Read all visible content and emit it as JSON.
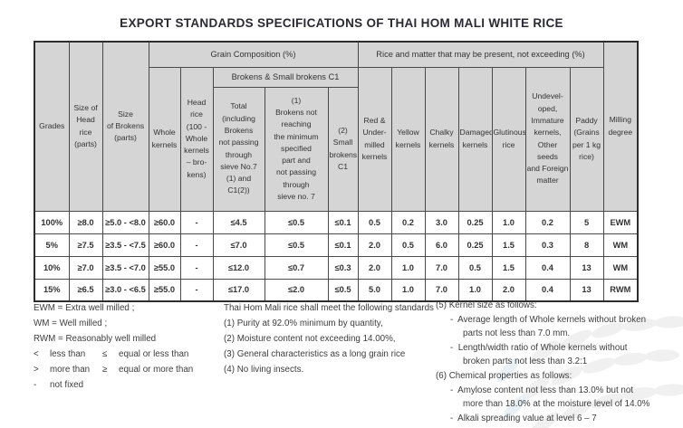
{
  "title": "EXPORT STANDARDS SPECIFICATIONS OF THAI HOM MALI WHITE RICE",
  "colors": {
    "header_bg": "#d5d5d5",
    "border": "#4a4a4a",
    "outer_border": "#2e2e2e",
    "title_text": "#2a2a33",
    "watermark": "#f0f0f0"
  },
  "table": {
    "groups": {
      "grain": "Grain Composition (%)",
      "rice_matter": "Rice and matter that may be present, not exceeding (%)",
      "brokens_small": "Brokens & Small brokens C1"
    },
    "h": {
      "grades": "Grades",
      "size_head": "Size of\nHead\nrice\n(parts)",
      "size_brokens": "Size\nof Brokens\n(parts)",
      "whole": "Whole\nkernels",
      "head_rice": "Head\nrice\n(100 -\nWhole\nkernels\n– bro-\nkens)",
      "total": "Total\n(including\nBrokens\nnot passing\nthrough\nsieve No.7\n(1) and\nC1(2))",
      "b1": "(1)\nBrokens not\nreaching\nthe minimum\nspecified\npart and\nnot passing\nthrough\nsieve no. 7",
      "b2": "(2)\nSmall\nbrokens\nC1",
      "red": "Red &\nUnder-\nmilled\nkernels",
      "yellow": "Yellow\nkernels",
      "chalky": "Chalky\nkernels",
      "damaged": "Damaged\nkernels",
      "glutinous": "Glutinous\nrice",
      "undeveloped": "Undevel-\noped,\nImmature\nkernels,\nOther\nseeds\nand Foreign\nmatter",
      "paddy": "Paddy\n(Grains\nper 1 kg\nrice)",
      "milling": "Milling\ndegree"
    },
    "rows": [
      [
        "100%",
        "≥8.0",
        "≥5.0 - <8.0",
        "≥60.0",
        "-",
        "≤4.5",
        "≤0.5",
        "≤0.1",
        "0.5",
        "0.2",
        "3.0",
        "0.25",
        "1.0",
        "0.2",
        "5",
        "EWM"
      ],
      [
        "5%",
        "≥7.5",
        "≥3.5 - <7.5",
        "≥60.0",
        "-",
        "≤7.0",
        "≤0.5",
        "≤0.1",
        "2.0",
        "0.5",
        "6.0",
        "0.25",
        "1.5",
        "0.3",
        "8",
        "WM"
      ],
      [
        "10%",
        "≥7.0",
        "≥3.5 - <7.0",
        "≥55.0",
        "-",
        "≤12.0",
        "≤0.7",
        "≤0.3",
        "2.0",
        "1.0",
        "7.0",
        "0.5",
        "1.5",
        "0.4",
        "13",
        "WM"
      ],
      [
        "15%",
        "≥6.5",
        "≥3.0 - <6.5",
        "≥55.0",
        "-",
        "≤17.0",
        "≤2.0",
        "≤0.5",
        "5.0",
        "1.0",
        "7.0",
        "1.0",
        "2.0",
        "0.4",
        "13",
        "RWM"
      ]
    ]
  },
  "notes": {
    "left": [
      {
        "segs": [
          "EWM = Extra well milled ;"
        ]
      },
      {
        "segs": [
          "WM = Well milled ;"
        ]
      },
      {
        "segs": [
          "RWM = Reasonably well milled"
        ]
      },
      {
        "segs": [
          "<",
          "less than",
          "≤",
          "equal or less than"
        ]
      },
      {
        "segs": [
          ">",
          "more than",
          "≥",
          "equal or more than"
        ]
      },
      {
        "segs": [
          "-",
          "not fixed"
        ]
      }
    ],
    "middle": [
      {
        "ind": 0,
        "text": "Thai Hom Mali rice shall meet the following standards"
      },
      {
        "ind": 0,
        "text": "(1) Purity at 92.0% minimum by quantity,"
      },
      {
        "ind": 0,
        "text": "(2) Moisture content not exceeding 14.00%,"
      },
      {
        "ind": 0,
        "text": "(3) General characteristics as a long grain rice"
      },
      {
        "ind": 0,
        "text": "(4) No living insects."
      }
    ],
    "right": [
      {
        "ind": 0,
        "text": "(5) Kernel size as follows:"
      },
      {
        "ind": 1,
        "text": "-  Average length of Whole kernels without broken"
      },
      {
        "ind": 2,
        "text": "parts not less than 7.0 mm."
      },
      {
        "ind": 1,
        "text": "-  Length/width ratio of Whole kernels without"
      },
      {
        "ind": 2,
        "text": "broken parts not less than 3.2:1"
      },
      {
        "ind": 0,
        "text": "(6) Chemical properties as follows:"
      },
      {
        "ind": 1,
        "text": "-  Amylose content not less than 13.0% but not"
      },
      {
        "ind": 2,
        "text": "more than 18.0% at the moisture level of 14.0%"
      },
      {
        "ind": 1,
        "text": "-  Alkali spreading value at level 6 – 7"
      }
    ]
  }
}
